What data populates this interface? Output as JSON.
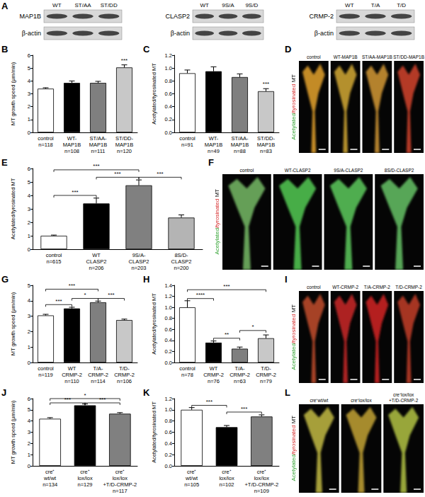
{
  "chart_data": [
    {
      "panel_label": "B",
      "type": "bar",
      "ylabel": "MT growth speed (µm/min)",
      "categories": [
        "control",
        "WT-\nMAP1B",
        "ST/AA-\nMAP1B",
        "ST/DD-\nMAP1B"
      ],
      "n_labels": [
        "n=118",
        "n=108",
        "n=111",
        "n=120"
      ],
      "values": [
        3.4,
        3.85,
        3.85,
        5.05
      ],
      "errors": [
        0.07,
        0.15,
        0.12,
        0.2
      ],
      "colors": [
        "#ffffff",
        "#000000",
        "#7f7f7f",
        "#c8c8c8"
      ],
      "ylim": [
        0,
        6
      ],
      "yticks": [
        0,
        1,
        2,
        3,
        4,
        5,
        6
      ],
      "grid": false,
      "annotations": [
        {
          "text": "***",
          "from": "ST/DD-\nMAP1B",
          "to": "ST/DD-\nMAP1B",
          "y": 5.3
        }
      ]
    },
    {
      "panel_label": "C",
      "type": "bar",
      "ylabel": "Acetylated/tyrosinated MT",
      "categories": [
        "control",
        "WT-\nMAP1B",
        "ST/AA-\nMAP1B",
        "ST/DD-\nMAP1B"
      ],
      "n_labels": [
        "n=91",
        "n=49",
        "n=88",
        "n=83"
      ],
      "values": [
        0.92,
        0.95,
        0.86,
        0.64
      ],
      "errors": [
        0.05,
        0.07,
        0.05,
        0.04
      ],
      "colors": [
        "#ffffff",
        "#000000",
        "#7f7f7f",
        "#c8c8c8"
      ],
      "ylim": [
        0,
        1.2
      ],
      "yticks": [
        {
          "value": 0,
          "label": "0.0"
        },
        0.2,
        0.4,
        0.6,
        0.8,
        {
          "value": 1,
          "label": "1.0"
        },
        1.2
      ],
      "grid": false,
      "annotations": [
        {
          "text": "***",
          "from": "ST/DD-\nMAP1B",
          "to": "ST/DD-\nMAP1B",
          "y": 0.7
        }
      ]
    },
    {
      "panel_label": "E",
      "type": "bar",
      "ylabel": "Acetylated/tyrosinated MT",
      "categories": [
        "control",
        "WT\nCLASP2",
        "9S/A-\nCLASP2",
        "8S/D-\nCLASP2"
      ],
      "n_labels": [
        "n=615",
        "n=206",
        "n=203",
        "n=200"
      ],
      "values": [
        1.0,
        3.4,
        4.75,
        2.35
      ],
      "errors": [
        0.05,
        0.4,
        0.4,
        0.2
      ],
      "colors": [
        "#ffffff",
        "#000000",
        "#808080",
        "#b4b4b4"
      ],
      "ylim": [
        0,
        6
      ],
      "yticks": [
        0,
        1,
        2,
        3,
        4,
        5,
        6
      ],
      "grid": false,
      "annotations": [
        {
          "text": "***",
          "from": "control",
          "to": "WT\nCLASP2",
          "y": 4.0
        },
        {
          "text": "***",
          "from": "WT\nCLASP2",
          "to": "9S/A-\nCLASP2",
          "y": 5.35
        },
        {
          "text": "***",
          "from": "9S/A-\nCLASP2",
          "to": "8S/D-\nCLASP2",
          "y": 5.35
        },
        {
          "text": "***",
          "from": "control",
          "to": "9S/A-\nCLASP2",
          "y": 5.9
        }
      ]
    },
    {
      "panel_label": "G",
      "type": "bar",
      "ylabel": "MT growth speed (µm/min)",
      "categories": [
        "control",
        "WT\nCRMP-2",
        "T/A-\nCRMP-2",
        "T/D-\nCRMP-2"
      ],
      "n_labels": [
        "n=119",
        "n=110",
        "n=114",
        "n=106"
      ],
      "values": [
        3.05,
        3.5,
        3.9,
        2.75
      ],
      "errors": [
        0.07,
        0.08,
        0.08,
        0.06
      ],
      "colors": [
        "#ffffff",
        "#000000",
        "#7f7f7f",
        "#c8c8c8"
      ],
      "ylim": [
        0,
        5
      ],
      "yticks": [
        0,
        1,
        2,
        3,
        4,
        5
      ],
      "grid": false,
      "annotations": [
        {
          "text": "***",
          "from": "control",
          "to": "WT\nCRMP-2",
          "y": 3.75
        },
        {
          "text": "*",
          "from": "WT\nCRMP-2",
          "to": "T/A-\nCRMP-2",
          "y": 4.15
        },
        {
          "text": "***",
          "from": "T/A-\nCRMP-2",
          "to": "T/D-\nCRMP-2",
          "y": 4.15
        },
        {
          "text": "***",
          "from": "control",
          "to": "T/A-\nCRMP-2",
          "y": 4.75
        }
      ]
    },
    {
      "panel_label": "H",
      "type": "bar",
      "ylabel": "Acetylated/tyrosinated MT",
      "categories": [
        "control",
        "WT\nCRMP-2",
        "T/A-\nCRMP-2",
        "T/D-\nCRMP-2"
      ],
      "n_labels": [
        "n=78",
        "n=76",
        "n=63",
        "n=79"
      ],
      "values": [
        1.0,
        0.36,
        0.25,
        0.44
      ],
      "errors": [
        0.12,
        0.03,
        0.03,
        0.06
      ],
      "colors": [
        "#ffffff",
        "#000000",
        "#7f7f7f",
        "#c8c8c8"
      ],
      "ylim": [
        0,
        1.4
      ],
      "yticks": [
        {
          "value": 0,
          "label": "0.0"
        },
        0.2,
        0.4,
        0.6,
        0.8,
        {
          "value": 1,
          "label": "1.0"
        },
        1.2,
        1.4
      ],
      "grid": false,
      "annotations": [
        {
          "text": "****",
          "from": "control",
          "to": "WT\nCRMP-2",
          "y": 1.16
        },
        {
          "text": "***",
          "from": "control",
          "to": "T/D-\nCRMP-2",
          "y": 1.32
        },
        {
          "text": "**",
          "from": "WT\nCRMP-2",
          "to": "T/A-\nCRMP-2",
          "y": 0.44
        },
        {
          "text": "*",
          "from": "T/A-\nCRMP-2",
          "to": "T/D-\nCRMP-2",
          "y": 0.58
        }
      ]
    },
    {
      "panel_label": "J",
      "type": "bar",
      "ylabel": "MT growth speed (µm/min)",
      "categories": [
        "cre⁺\nwt/wt",
        "cre⁺\nlox/lox",
        "cre⁺\nlox/lox\n+T/D-CRMP-2"
      ],
      "n_labels": [
        "n=134",
        "n=129",
        "n=117"
      ],
      "values": [
        4.2,
        5.4,
        4.65
      ],
      "errors": [
        0.1,
        0.12,
        0.1
      ],
      "colors": [
        "#ffffff",
        "#000000",
        "#808080"
      ],
      "ylim": [
        0,
        6
      ],
      "yticks": [
        0,
        1,
        2,
        3,
        4,
        5,
        6
      ],
      "grid": false,
      "annotations": [
        {
          "text": "***",
          "from": "cre⁺\nwt/wt",
          "to": "cre⁺\nlox/lox",
          "y": 5.62
        },
        {
          "text": "***",
          "from": "cre⁺\nlox/lox",
          "to": "cre⁺\nlox/lox\n+T/D-CRMP-2",
          "y": 5.62
        },
        {
          "text": "*",
          "from": "cre⁺\nwt/wt",
          "to": "cre⁺\nlox/lox\n+T/D-CRMP-2",
          "y": 6.0
        }
      ]
    },
    {
      "panel_label": "K",
      "type": "bar",
      "ylabel": "Acetylated/tyrosinated MT",
      "categories": [
        "cre⁺\nwt/wt",
        "cre⁺\nlox/lox",
        "cre⁺\nlox/lox\n+T/D-CRMP-2"
      ],
      "n_labels": [
        "n=105",
        "n=102",
        "n=109"
      ],
      "values": [
        1.0,
        0.69,
        0.88
      ],
      "errors": [
        0.04,
        0.03,
        0.03
      ],
      "colors": [
        "#ffffff",
        "#000000",
        "#808080"
      ],
      "ylim": [
        0,
        1.2
      ],
      "yticks": [
        {
          "value": 0,
          "label": "0.0"
        },
        0.2,
        0.4,
        0.6,
        0.8,
        {
          "value": 1,
          "label": "1.0"
        },
        1.2
      ],
      "grid": false,
      "annotations": [
        {
          "text": "***",
          "from": "cre⁺\nwt/wt",
          "to": "cre⁺\nlox/lox",
          "y": 1.08
        },
        {
          "text": "***",
          "from": "cre⁺\nlox/lox",
          "to": "cre⁺\nlox/lox\n+T/D-CRMP-2",
          "y": 0.96
        }
      ]
    }
  ],
  "image_panels": [
    {
      "panel_label": "A",
      "type": "blot",
      "blots": [
        {
          "lanes": [
            "WT",
            "ST/AA",
            "ST/DD"
          ],
          "rows": [
            "MAP1B",
            "β-actin"
          ]
        },
        {
          "lanes": [
            "WT",
            "9S/A",
            "9S/D"
          ],
          "rows": [
            "CLASP2",
            "β-actin"
          ]
        },
        {
          "lanes": [
            "WT",
            "T/A",
            "T/D"
          ],
          "rows": [
            "CRMP-2",
            "β-actin"
          ]
        }
      ]
    },
    {
      "panel_label": "D",
      "type": "micrograph",
      "side_label": [
        {
          "text": "Acetylated",
          "color": "#2ca02c"
        },
        {
          "text": "/tyrosinated",
          "color": "#d62728"
        },
        {
          "text": " MT",
          "color": "#000000"
        }
      ],
      "labels": [
        "control",
        "WT-MAP1B",
        "ST/AA-MAP1B",
        "ST/DD-MAP1B"
      ],
      "colors": [
        "#d89a2a",
        "#c8a030",
        "#c89030",
        "#c8402a"
      ]
    },
    {
      "panel_label": "F",
      "type": "micrograph",
      "side_label": [
        {
          "text": "Acetylated",
          "color": "#2ca02c"
        },
        {
          "text": "/tyrosinated",
          "color": "#d62728"
        },
        {
          "text": " MT",
          "color": "#000000"
        }
      ],
      "labels": [
        "control",
        "WT-CLASP2",
        "9S/A-CLASP2",
        "8S/D-CLASP2"
      ],
      "colors": [
        "#70b060",
        "#50c050",
        "#58c058",
        "#60b860"
      ]
    },
    {
      "panel_label": "I",
      "type": "micrograph",
      "side_label": [
        {
          "text": "Acetylated",
          "color": "#2ca02c"
        },
        {
          "text": "/tyrosinated",
          "color": "#d62728"
        },
        {
          "text": " MT",
          "color": "#000000"
        }
      ],
      "labels": [
        "control",
        "WT-CRMP-2",
        "T/A-CRMP-2",
        "T/D-CRMP-2"
      ],
      "colors": [
        "#b84a2a",
        "#c02828",
        "#c82020",
        "#b83a28"
      ]
    },
    {
      "panel_label": "L",
      "type": "micrograph",
      "side_label": [
        {
          "text": "Acetylated",
          "color": "#2ca02c"
        },
        {
          "text": "/tyrosinated",
          "color": "#d62728"
        },
        {
          "text": " MT",
          "color": "#000000"
        }
      ],
      "labels": [
        "cre⁺wt/wt",
        "cre⁺lox/lox",
        "cre⁺lox/lox\n+T/D-CRMP-2"
      ],
      "colors": [
        "#b8b040",
        "#b89a30",
        "#a8b840"
      ]
    }
  ]
}
